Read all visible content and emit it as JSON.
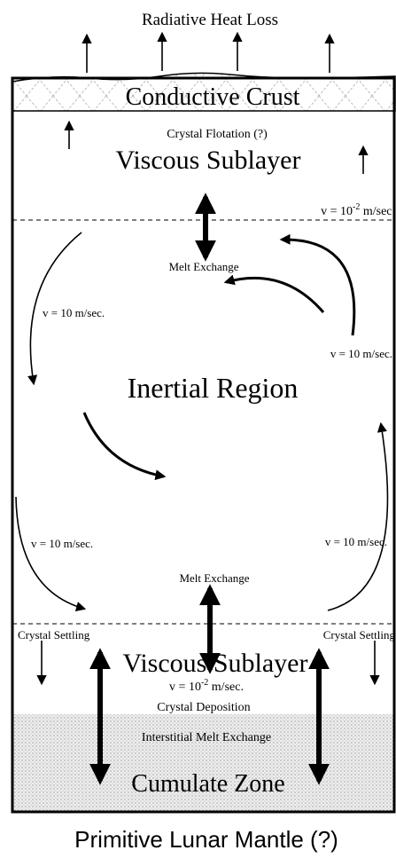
{
  "title": "Radiative Heat Loss",
  "crust": {
    "label": "Conductive Crust",
    "note": "Crystal Flotation (?)"
  },
  "upper_sublayer": {
    "label": "Viscous Sublayer",
    "velocity": {
      "base": "v = 10",
      "exponent": "-2",
      "unit": " m/sec."
    }
  },
  "inertial_region": {
    "label": "Inertial Region",
    "upper_exchange": "Melt Exchange",
    "lower_exchange": "Melt Exchange",
    "velocities": [
      "v = 10 m/sec.",
      "v = 10 m/sec.",
      "v = 10 m/sec.",
      "v = 10 m/sec."
    ]
  },
  "lower_sublayer": {
    "label": "Viscous Sublayer",
    "settling_left": "Crystal Settling",
    "settling_right": "Crystal Settling",
    "velocity": {
      "base": "v = 10",
      "exponent": "-2",
      "unit": " m/sec."
    },
    "deposition": "Crystal Deposition"
  },
  "cumulate": {
    "label": "Cumulate Zone",
    "exchange": "Interstitial Melt Exchange"
  },
  "footer": "Primitive Lunar Mantle (?)"
}
